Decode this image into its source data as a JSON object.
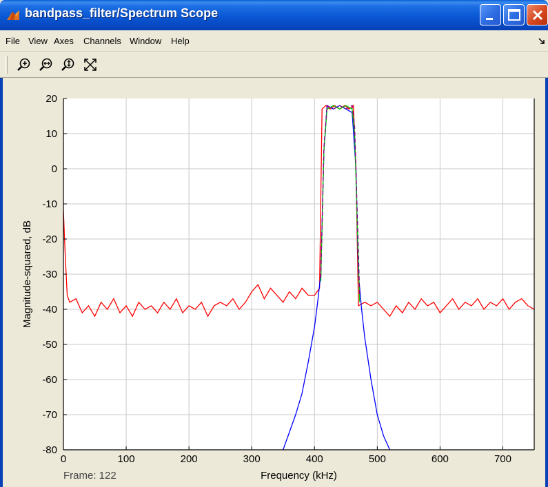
{
  "window": {
    "title": "bandpass_filter/Spectrum Scope"
  },
  "menu": {
    "items": [
      "File",
      "View",
      "Axes",
      "Channels",
      "Window",
      "Help"
    ],
    "dock_icon": "dock-arrow-icon"
  },
  "toolbar": {
    "buttons": [
      "zoom-in-icon",
      "zoom-x-icon",
      "zoom-y-icon",
      "autoscale-icon"
    ]
  },
  "status": {
    "frame_label": "Frame: 122"
  },
  "colors": {
    "title_bar": "#0a57d3",
    "noisy_trace": "#ff0000",
    "filtered_trace": "#0000ff",
    "passband_trace": "#00cc00",
    "passband_trace_2": "#800080"
  },
  "chart_data": {
    "type": "line",
    "xlabel": "Frequency (kHz)",
    "ylabel": "Magnitude-squared, dB",
    "xlim": [
      0,
      750
    ],
    "ylim": [
      -80,
      20
    ],
    "xticks": [
      0,
      100,
      200,
      300,
      400,
      500,
      600,
      700
    ],
    "yticks": [
      20,
      10,
      0,
      -10,
      -20,
      -30,
      -40,
      -50,
      -60,
      -70,
      -80
    ],
    "grid": true,
    "series": [
      {
        "color": "#ff0000",
        "x": [
          0,
          3,
          6,
          10,
          20,
          30,
          40,
          50,
          60,
          70,
          80,
          90,
          100,
          110,
          120,
          130,
          140,
          150,
          160,
          170,
          180,
          190,
          200,
          210,
          220,
          230,
          240,
          250,
          260,
          270,
          280,
          290,
          300,
          310,
          320,
          330,
          340,
          350,
          360,
          370,
          380,
          390,
          400,
          408,
          412,
          418,
          425,
          432,
          440,
          448,
          455,
          462,
          466,
          470,
          480,
          490,
          500,
          510,
          520,
          530,
          540,
          550,
          560,
          570,
          580,
          590,
          600,
          610,
          620,
          630,
          640,
          650,
          660,
          670,
          680,
          690,
          700,
          710,
          720,
          730,
          740,
          750
        ],
        "values": [
          -12,
          -25,
          -36,
          -38,
          -37,
          -41,
          -39,
          -42,
          -38,
          -40,
          -37,
          -41,
          -39,
          -42,
          -38,
          -40,
          -39,
          -41,
          -38,
          -40,
          -37,
          -41,
          -39,
          -40,
          -38,
          -42,
          -39,
          -38,
          -39,
          -37,
          -40,
          -38,
          -35,
          -33,
          -37,
          -34,
          -36,
          -38,
          -35,
          -37,
          -34,
          -36,
          -36,
          -34,
          17,
          18,
          17,
          18,
          17,
          18,
          17,
          18,
          0,
          -39,
          -38,
          -39,
          -38,
          -40,
          -42,
          -39,
          -41,
          -38,
          -40,
          -37,
          -39,
          -38,
          -41,
          -39,
          -37,
          -40,
          -38,
          -39,
          -37,
          -40,
          -38,
          -39,
          -37,
          -40,
          -38,
          -37,
          -39,
          -40
        ]
      },
      {
        "color": "#0000ff",
        "x": [
          350,
          360,
          370,
          380,
          390,
          400,
          405,
          410,
          415,
          420,
          430,
          440,
          450,
          460,
          466,
          470,
          475,
          480,
          490,
          500,
          510,
          520
        ],
        "values": [
          -80,
          -75,
          -70,
          -64,
          -55,
          -45,
          -38,
          -30,
          5,
          18,
          17,
          18,
          17,
          16,
          0,
          -30,
          -40,
          -48,
          -60,
          -70,
          -76,
          -80
        ]
      },
      {
        "color": "#00cc00",
        "x": [
          410,
          415,
          420,
          430,
          440,
          450,
          460,
          464,
          468,
          472
        ],
        "values": [
          -32,
          5,
          17,
          18,
          17,
          18,
          17,
          10,
          -15,
          -38
        ]
      },
      {
        "color": "#800080",
        "x": [
          410,
          415,
          420,
          430,
          440,
          450,
          460,
          464,
          468,
          472
        ],
        "values": [
          -31,
          6,
          18,
          17,
          18,
          17,
          18,
          12,
          -12,
          -36
        ]
      }
    ]
  }
}
